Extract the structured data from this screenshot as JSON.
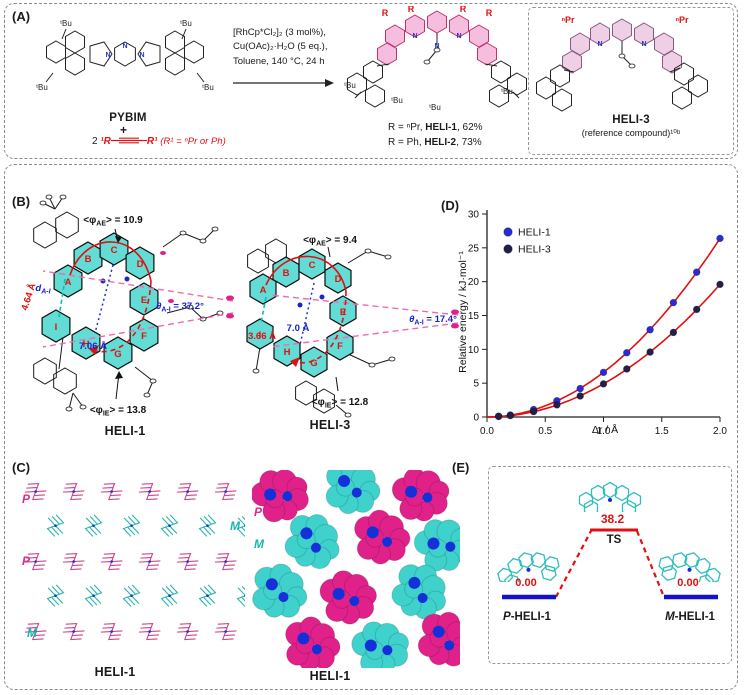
{
  "colors": {
    "magenta": "#e0218a",
    "teal": "#35d0ca",
    "red": "#e01010",
    "blue": "#1515cc",
    "core_cyan": "#62dcd4",
    "pink_fill": "#f6bede"
  },
  "panelA": {
    "label": "(A)",
    "pybim_name": "PYBIM",
    "plus": "+",
    "alkyne_coeff": "2",
    "alkyne_left": "¹R",
    "alkyne_right": "R¹",
    "alkyne_note": "(R¹ = ⁿPr or Ph)",
    "tbu": "ᵗBu",
    "n_label": "N",
    "r_label": "R",
    "npr_label": "ⁿPr",
    "conditions": [
      "[RhCp*Cl₂]₂ (3 mol%),",
      "Cu(OAc)₂·H₂O (5 eq.),",
      "Toluene, 140 °C, 24 h"
    ],
    "product_lines": [
      {
        "pre": "R = ⁿPr, ",
        "name": "HELI-1",
        "post": ", 62%"
      },
      {
        "pre": "R = Ph, ",
        "name": "HELI-2",
        "post": ", 73%"
      }
    ],
    "heli3_name": "HELI-3",
    "heli3_sub": "(reference compound)¹⁰ᵇ"
  },
  "panelB": {
    "label": "(B)",
    "heli1": {
      "name": "HELI-1",
      "rings": [
        "A",
        "B",
        "C",
        "D",
        "E",
        "F",
        "G",
        "H",
        "I"
      ],
      "phi_top": {
        "pre": "<φ",
        "sub": "AE",
        "post": "> = 10.9"
      },
      "phi_bottom": {
        "pre": "<φ",
        "sub": "IE",
        "post": "> = 13.8"
      },
      "theta": {
        "sym": "θ",
        "sub": "A-I",
        "val": " = 37.2°"
      },
      "d_label": {
        "sym": "d",
        "sub": "A-I"
      },
      "d_value": "4.64 Å",
      "span_value": "7.06 Å"
    },
    "heli3": {
      "name": "HELI-3",
      "rings": [
        "A",
        "B",
        "C",
        "D",
        "E",
        "F",
        "G",
        "H",
        "I"
      ],
      "phi_top": {
        "pre": "<φ",
        "sub": "AE",
        "post": "> = 9.4"
      },
      "phi_bottom": {
        "pre": "<φ",
        "sub": "IE",
        "post": "> = 12.8"
      },
      "theta": {
        "sym": "θ",
        "sub": "A-I",
        "val": " = 17.4°"
      },
      "d_value": "3.66 Å",
      "span_value": "7.0 Å"
    }
  },
  "panelC": {
    "label": "(C)",
    "left_caption": "HELI-1",
    "right_caption": "HELI-1",
    "p_label": "P",
    "m_label": "M"
  },
  "panelD": {
    "label": "(D)"
  },
  "panelE": {
    "label": "(E)",
    "ts_energy": "38.2",
    "ts_label": "TS",
    "left_energy": "0.00",
    "right_energy": "0.00",
    "left_prefix": "P",
    "left_rest": "-HELI-1",
    "right_prefix": "M",
    "right_rest": "-HELI-1"
  },
  "chart_data": {
    "type": "scatter",
    "title": "",
    "xlabel": "Δr / Å",
    "ylabel": "Relative energy / kJ·mol⁻¹",
    "xlim": [
      0,
      2
    ],
    "ylim": [
      0,
      30
    ],
    "xticks": [
      "0.0",
      "0.5",
      "1.0",
      "1.5",
      "2.0"
    ],
    "yticks": [
      0,
      5,
      10,
      15,
      20,
      25,
      30
    ],
    "grid": false,
    "legend_position": "top-left",
    "legend": [
      "HELI-1",
      "HELI-3"
    ],
    "fit_color": "#e01010",
    "series": [
      {
        "name": "HELI-1",
        "marker_color": "#2a2ad8",
        "x": [
          0.1,
          0.2,
          0.4,
          0.6,
          0.8,
          1.0,
          1.2,
          1.4,
          1.6,
          1.8,
          2.0
        ],
        "y": [
          0.1,
          0.3,
          1.1,
          2.4,
          4.2,
          6.6,
          9.5,
          12.9,
          16.9,
          21.4,
          26.4
        ]
      },
      {
        "name": "HELI-3",
        "marker_color": "#20204a",
        "x": [
          0.1,
          0.2,
          0.4,
          0.6,
          0.8,
          1.0,
          1.2,
          1.4,
          1.6,
          1.8,
          2.0
        ],
        "y": [
          0.1,
          0.2,
          0.8,
          1.8,
          3.1,
          4.9,
          7.1,
          9.6,
          12.5,
          15.9,
          19.6
        ]
      }
    ]
  }
}
